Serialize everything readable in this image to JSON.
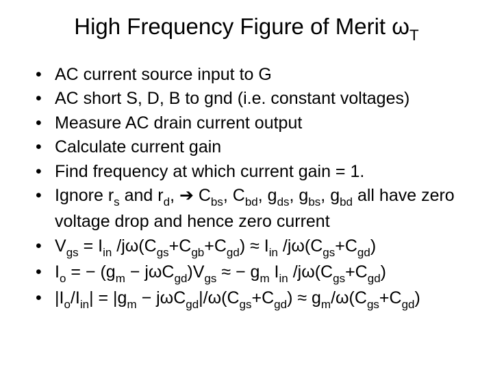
{
  "title_fontsize": 33,
  "bullet_fontsize": 25,
  "text_color": "#000000",
  "background_color": "#ffffff",
  "title_parts": {
    "main": "High Frequency Figure of Merit ",
    "omega": "ω",
    "sub": "T"
  },
  "bullets": [
    {
      "plain": "AC current source input to G"
    },
    {
      "plain": "AC short S, D, B to gnd (i.e. constant voltages)"
    },
    {
      "plain": "Measure AC drain current output"
    },
    {
      "plain": "Calculate current gain"
    },
    {
      "plain": "Find frequency at which current gain = 1."
    },
    {
      "html_key": "b6"
    },
    {
      "html_key": "b7"
    },
    {
      "html_key": "b8"
    },
    {
      "html_key": "b9"
    }
  ],
  "rich": {
    "b6": "Ignore r<span class='sub'>s</span> and r<span class='sub'>d</span>, ➔ C<span class='sub'>bs</span>, C<span class='sub'>bd</span>, g<span class='sub'>ds</span>, g<span class='sub'>bs</span>, g<span class='sub'>bd</span> all have zero voltage drop and hence zero current",
    "b7": "V<span class='sub'>gs</span> = I<span class='sub'>in</span> /jω(C<span class='sub'>gs</span>+C<span class='sub'>gb</span>+C<span class='sub'>gd</span>) ≈ I<span class='sub'>in</span> /jω(C<span class='sub'>gs</span>+C<span class='sub'>gd</span>)",
    "b8": "I<span class='sub'>o</span> = − (g<span class='sub'>m</span> − jωC<span class='sub'>gd</span>)V<span class='sub'>gs</span> ≈ − g<span class='sub'>m</span> I<span class='sub'>in</span> /jω(C<span class='sub'>gs</span>+C<span class='sub'>gd</span>)",
    "b9": "|I<span class='sub'>o</span>/I<span class='sub'>in</span>| = |g<span class='sub'>m</span> − jωC<span class='sub'>gd</span>|/ω(C<span class='sub'>gs</span>+C<span class='sub'>gd</span>) ≈ g<span class='sub'>m</span>/ω(C<span class='sub'>gs</span>+C<span class='sub'>gd</span>)"
  }
}
